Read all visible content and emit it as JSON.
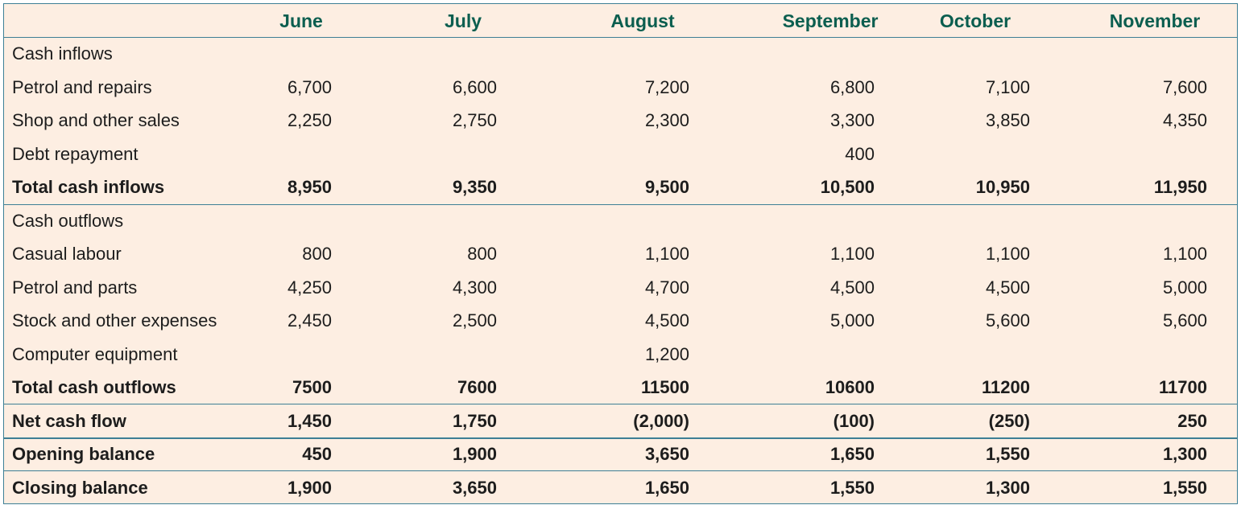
{
  "table": {
    "columns": [
      "June",
      "July",
      "August",
      "September",
      "October",
      "November"
    ],
    "rows": [
      {
        "label": "Cash inflows",
        "values": [
          null,
          null,
          null,
          null,
          null,
          null
        ]
      },
      {
        "label": "Petrol and repairs",
        "values": [
          "6,700",
          "6,600",
          "7,200",
          "6,800",
          "7,100",
          "7,600"
        ]
      },
      {
        "label": "Shop and other sales",
        "values": [
          "2,250",
          "2,750",
          "2,300",
          "3,300",
          "3,850",
          "4,350"
        ]
      },
      {
        "label": "Debt repayment",
        "values": [
          null,
          null,
          null,
          "400",
          null,
          null
        ]
      },
      {
        "label": "Total cash inflows",
        "values": [
          "8,950",
          "9,350",
          "9,500",
          "10,500",
          "10,950",
          "11,950"
        ]
      },
      {
        "label": "Cash outflows",
        "values": [
          null,
          null,
          null,
          null,
          null,
          null
        ]
      },
      {
        "label": "Casual labour",
        "values": [
          "800",
          "800",
          "1,100",
          "1,100",
          "1,100",
          "1,100"
        ]
      },
      {
        "label": "Petrol and parts",
        "values": [
          "4,250",
          "4,300",
          "4,700",
          "4,500",
          "4,500",
          "5,000"
        ]
      },
      {
        "label": "Stock and other expenses",
        "values": [
          "2,450",
          "2,500",
          "4,500",
          "5,000",
          "5,600",
          "5,600"
        ]
      },
      {
        "label": "Computer equipment",
        "values": [
          null,
          null,
          "1,200",
          null,
          null,
          null
        ]
      },
      {
        "label": "Total cash outflows",
        "values": [
          "7500",
          "7600",
          "11500",
          "10600",
          "11200",
          "11700"
        ]
      },
      {
        "label": "Net cash flow",
        "values": [
          "1,450",
          "1,750",
          "(2,000)",
          "(100)",
          "(250)",
          "250"
        ]
      },
      {
        "label": "Opening balance",
        "values": [
          "450",
          "1,900",
          "3,650",
          "1,650",
          "1,550",
          "1,300"
        ]
      },
      {
        "label": "Closing balance",
        "values": [
          "1,900",
          "3,650",
          "1,650",
          "1,550",
          "1,300",
          "1,550"
        ]
      }
    ]
  }
}
